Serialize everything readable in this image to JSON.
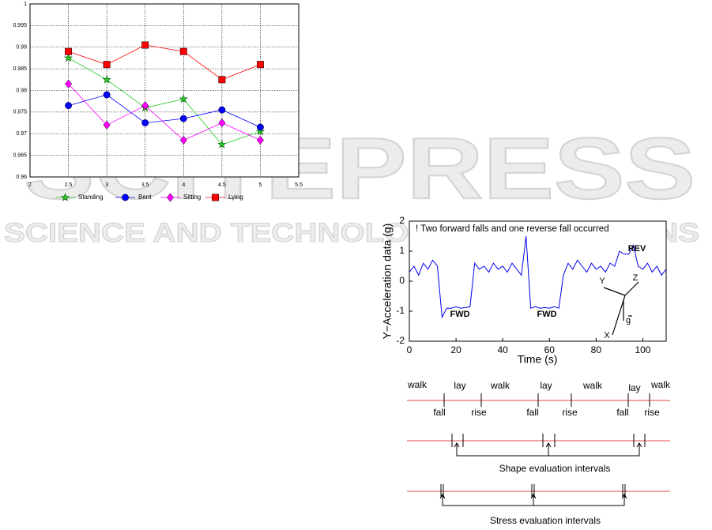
{
  "watermark": {
    "title": "SCITEPRESS",
    "subtitle": "SCIENCE AND TECHNOLOGY PUBLICATIONS"
  },
  "chart_data": [
    {
      "type": "line",
      "x": [
        2.5,
        3,
        3.5,
        4,
        4.5,
        5
      ],
      "xlim": [
        2,
        5.5
      ],
      "xticks": [
        2,
        2.5,
        3,
        3.5,
        4,
        4.5,
        5,
        5.5
      ],
      "ylim": [
        0.96,
        1
      ],
      "yticks": [
        0.96,
        0.965,
        0.97,
        0.975,
        0.98,
        0.985,
        0.99,
        0.995,
        1
      ],
      "grid": true,
      "legend": "bottom",
      "series": [
        {
          "name": "Standing",
          "color": "#22cc22",
          "marker": "star",
          "values": [
            0.9875,
            0.9825,
            0.976,
            0.978,
            0.9675,
            0.9705
          ]
        },
        {
          "name": "Bent",
          "color": "#0000ff",
          "marker": "circle",
          "values": [
            0.9765,
            0.979,
            0.9725,
            0.9735,
            0.9755,
            0.9715
          ]
        },
        {
          "name": "Sitting",
          "color": "#ff00ff",
          "marker": "diamond",
          "values": [
            0.9815,
            0.972,
            0.9765,
            0.9685,
            0.9725,
            0.9685
          ]
        },
        {
          "name": "Lying",
          "color": "#ff0000",
          "marker": "square",
          "values": [
            0.989,
            0.986,
            0.9905,
            0.989,
            0.9825,
            0.986
          ]
        }
      ]
    },
    {
      "type": "line",
      "title": "! Two forward falls and one reverse fall occurred",
      "x_label": "Time (s)",
      "y_label": "Y−Acceleration data (g)",
      "annotations": [
        "FWD",
        "FWD",
        "REV",
        "Y",
        "Z",
        "X",
        "g"
      ],
      "x": [
        0,
        2,
        4,
        6,
        8,
        10,
        12,
        14,
        16,
        18,
        20,
        22,
        24,
        26,
        28,
        30,
        32,
        34,
        36,
        38,
        40,
        42,
        44,
        46,
        48,
        50,
        52,
        54,
        56,
        58,
        60,
        62,
        64,
        66,
        68,
        70,
        72,
        74,
        76,
        78,
        80,
        82,
        84,
        86,
        88,
        90,
        92,
        94,
        96,
        98,
        100,
        102,
        104,
        106,
        108,
        110
      ],
      "xlim": [
        0,
        110
      ],
      "xticks": [
        0,
        20,
        40,
        60,
        80,
        100
      ],
      "ylim": [
        -2,
        2
      ],
      "yticks": [
        -2,
        -1,
        0,
        1,
        2
      ],
      "series": [
        {
          "name": "Y",
          "color": "#0000ee",
          "values": [
            0.3,
            0.5,
            0.2,
            0.6,
            0.4,
            0.7,
            0.5,
            -1.2,
            -0.9,
            -0.9,
            -0.85,
            -0.9,
            -0.88,
            -0.85,
            0.6,
            0.4,
            0.5,
            0.3,
            0.6,
            0.4,
            0.5,
            0.3,
            0.6,
            0.4,
            0.2,
            1.5,
            -0.9,
            -0.85,
            -0.9,
            -0.88,
            -0.9,
            -0.85,
            -0.9,
            0.2,
            0.6,
            0.4,
            0.7,
            0.5,
            0.3,
            0.6,
            0.4,
            0.5,
            0.3,
            0.6,
            0.5,
            1.0,
            0.9,
            0.9,
            1.2,
            0.5,
            0.4,
            0.6,
            0.3,
            0.5,
            0.2,
            0.4
          ]
        }
      ]
    }
  ],
  "timeline": {
    "states": [
      "walk",
      "lay",
      "walk",
      "lay",
      "walk",
      "lay",
      "walk"
    ],
    "events": [
      "fall",
      "rise",
      "fall",
      "rise",
      "fall",
      "rise"
    ],
    "shape_caption": "Shape evaluation intervals",
    "stress_caption": "Stress evaluation intervals"
  }
}
